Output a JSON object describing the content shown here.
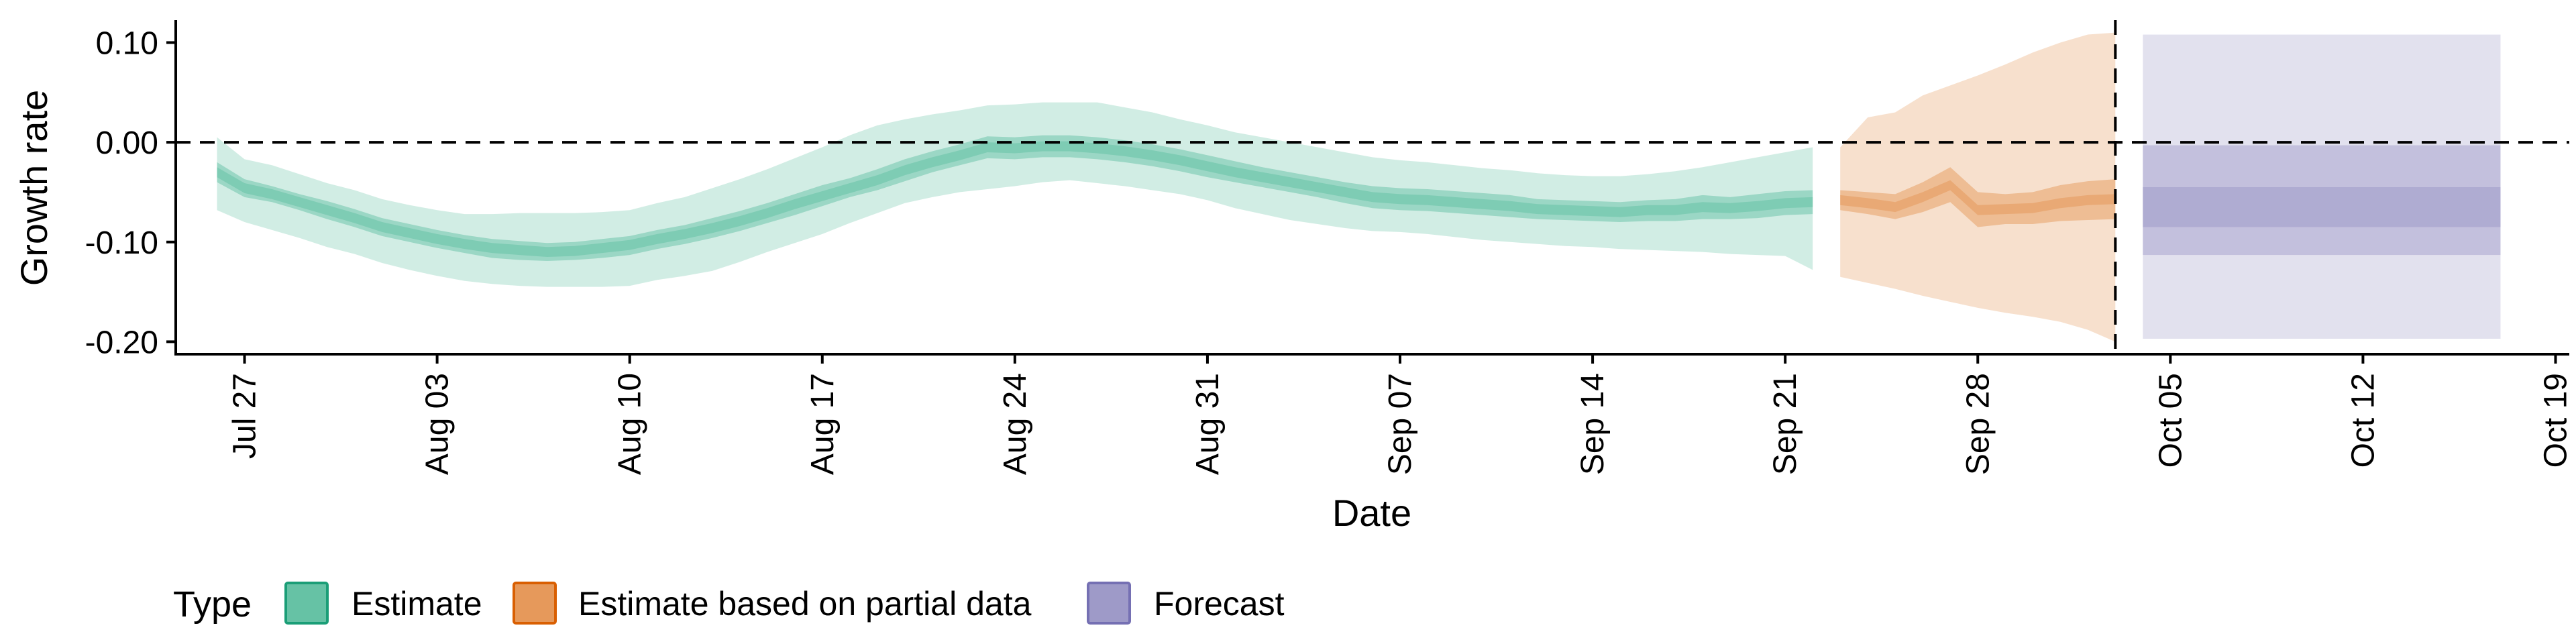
{
  "chart_data": {
    "type": "area",
    "title": "",
    "xlabel": "Date",
    "ylabel": "Growth rate",
    "x_start": "Jul 25",
    "x_range_days": [
      -0.5,
      86.5
    ],
    "ylim": [
      -0.2125,
      0.1225
    ],
    "y_ticks": [
      0.1,
      0.0,
      -0.1,
      -0.2
    ],
    "y_tick_labels": [
      "0.10",
      "0.00",
      "-0.10",
      "-0.20"
    ],
    "x_tick_days": [
      2,
      9,
      16,
      23,
      30,
      37,
      44,
      51,
      58,
      65,
      72,
      79,
      86
    ],
    "x_tick_labels": [
      "Jul 27",
      "Aug 03",
      "Aug 10",
      "Aug 17",
      "Aug 24",
      "Aug 31",
      "Sep 07",
      "Sep 14",
      "Sep 21",
      "Sep 28",
      "Oct 05",
      "Oct 12",
      "Oct 19"
    ],
    "reference_lines": {
      "horizontal_zero": 0.0,
      "vertical_day": 70
    },
    "legend": {
      "title": "Type",
      "position": "bottom-left",
      "entries": [
        {
          "label": "Estimate",
          "fill": "#66c2a5",
          "border": "#1b9e77"
        },
        {
          "label": "Estimate based on partial data",
          "fill": "#e6995b",
          "border": "#d95f02"
        },
        {
          "label": "Forecast",
          "fill": "#9e9ac8",
          "border": "#7570b3"
        }
      ]
    },
    "series": [
      {
        "name": "Estimate",
        "color": "#1b9e77",
        "x_days": [
          1,
          2,
          3,
          4,
          5,
          6,
          7,
          8,
          9,
          10,
          11,
          12,
          13,
          14,
          15,
          16,
          17,
          18,
          19,
          20,
          21,
          22,
          23,
          24,
          25,
          26,
          27,
          28,
          29,
          30,
          31,
          32,
          33,
          34,
          35,
          36,
          37,
          38,
          39,
          40,
          41,
          42,
          43,
          44,
          45,
          46,
          47,
          48,
          49,
          50,
          51,
          52,
          53,
          54,
          55,
          56,
          57,
          58,
          59
        ],
        "median": [
          -0.03,
          -0.046,
          -0.052,
          -0.06,
          -0.068,
          -0.076,
          -0.085,
          -0.091,
          -0.097,
          -0.102,
          -0.106,
          -0.108,
          -0.11,
          -0.109,
          -0.106,
          -0.103,
          -0.097,
          -0.092,
          -0.086,
          -0.079,
          -0.071,
          -0.062,
          -0.054,
          -0.046,
          -0.038,
          -0.028,
          -0.02,
          -0.013,
          -0.005,
          -0.006,
          -0.004,
          -0.004,
          -0.006,
          -0.009,
          -0.013,
          -0.018,
          -0.024,
          -0.03,
          -0.035,
          -0.04,
          -0.045,
          -0.05,
          -0.055,
          -0.057,
          -0.058,
          -0.06,
          -0.062,
          -0.064,
          -0.067,
          -0.068,
          -0.069,
          -0.07,
          -0.068,
          -0.068,
          -0.065,
          -0.066,
          -0.064,
          -0.061,
          -0.06
        ],
        "q25": [
          -0.04,
          -0.055,
          -0.06,
          -0.068,
          -0.077,
          -0.085,
          -0.094,
          -0.1,
          -0.106,
          -0.111,
          -0.116,
          -0.118,
          -0.119,
          -0.118,
          -0.116,
          -0.113,
          -0.107,
          -0.102,
          -0.096,
          -0.089,
          -0.081,
          -0.073,
          -0.064,
          -0.055,
          -0.048,
          -0.039,
          -0.03,
          -0.023,
          -0.016,
          -0.017,
          -0.015,
          -0.015,
          -0.017,
          -0.02,
          -0.024,
          -0.029,
          -0.035,
          -0.04,
          -0.045,
          -0.05,
          -0.055,
          -0.061,
          -0.066,
          -0.068,
          -0.069,
          -0.071,
          -0.073,
          -0.075,
          -0.077,
          -0.078,
          -0.079,
          -0.08,
          -0.079,
          -0.079,
          -0.077,
          -0.077,
          -0.076,
          -0.073,
          -0.072
        ],
        "q75": [
          -0.02,
          -0.037,
          -0.044,
          -0.052,
          -0.059,
          -0.067,
          -0.076,
          -0.082,
          -0.088,
          -0.093,
          -0.097,
          -0.099,
          -0.101,
          -0.1,
          -0.097,
          -0.094,
          -0.088,
          -0.083,
          -0.076,
          -0.069,
          -0.061,
          -0.052,
          -0.043,
          -0.036,
          -0.027,
          -0.017,
          -0.009,
          -0.002,
          0.006,
          0.005,
          0.007,
          0.007,
          0.005,
          0.002,
          -0.002,
          -0.007,
          -0.013,
          -0.019,
          -0.025,
          -0.03,
          -0.035,
          -0.04,
          -0.044,
          -0.046,
          -0.047,
          -0.049,
          -0.051,
          -0.053,
          -0.057,
          -0.058,
          -0.059,
          -0.06,
          -0.058,
          -0.057,
          -0.053,
          -0.055,
          -0.052,
          -0.049,
          -0.048
        ],
        "q05": [
          -0.068,
          -0.08,
          -0.088,
          -0.096,
          -0.105,
          -0.112,
          -0.121,
          -0.128,
          -0.134,
          -0.139,
          -0.142,
          -0.144,
          -0.145,
          -0.145,
          -0.145,
          -0.144,
          -0.138,
          -0.134,
          -0.129,
          -0.12,
          -0.11,
          -0.101,
          -0.092,
          -0.081,
          -0.071,
          -0.061,
          -0.055,
          -0.05,
          -0.047,
          -0.044,
          -0.04,
          -0.038,
          -0.041,
          -0.044,
          -0.048,
          -0.052,
          -0.058,
          -0.066,
          -0.072,
          -0.078,
          -0.082,
          -0.086,
          -0.089,
          -0.09,
          -0.092,
          -0.095,
          -0.098,
          -0.1,
          -0.102,
          -0.104,
          -0.105,
          -0.107,
          -0.108,
          -0.109,
          -0.11,
          -0.112,
          -0.113,
          -0.114,
          -0.128
        ],
        "q95": [
          0.005,
          -0.017,
          -0.023,
          -0.032,
          -0.041,
          -0.048,
          -0.057,
          -0.063,
          -0.068,
          -0.072,
          -0.072,
          -0.071,
          -0.071,
          -0.071,
          -0.07,
          -0.068,
          -0.061,
          -0.055,
          -0.046,
          -0.037,
          -0.027,
          -0.016,
          -0.005,
          0.007,
          0.017,
          0.023,
          0.028,
          0.032,
          0.037,
          0.038,
          0.04,
          0.04,
          0.04,
          0.035,
          0.03,
          0.023,
          0.017,
          0.01,
          0.005,
          0.0,
          -0.005,
          -0.01,
          -0.015,
          -0.018,
          -0.02,
          -0.023,
          -0.026,
          -0.028,
          -0.031,
          -0.033,
          -0.034,
          -0.034,
          -0.032,
          -0.029,
          -0.025,
          -0.02,
          -0.015,
          -0.01,
          -0.005
        ]
      },
      {
        "name": "Estimate based on partial data",
        "color": "#d95f02",
        "x_days": [
          60,
          61,
          62,
          63,
          64,
          65,
          66,
          67,
          68,
          69,
          70
        ],
        "median": [
          -0.058,
          -0.061,
          -0.065,
          -0.055,
          -0.043,
          -0.068,
          -0.067,
          -0.066,
          -0.061,
          -0.058,
          -0.057
        ],
        "q25": [
          -0.068,
          -0.072,
          -0.077,
          -0.07,
          -0.06,
          -0.085,
          -0.082,
          -0.082,
          -0.079,
          -0.078,
          -0.077
        ],
        "q75": [
          -0.048,
          -0.05,
          -0.052,
          -0.04,
          -0.025,
          -0.05,
          -0.052,
          -0.05,
          -0.043,
          -0.039,
          -0.037
        ],
        "q05": [
          -0.135,
          -0.141,
          -0.147,
          -0.154,
          -0.16,
          -0.166,
          -0.171,
          -0.175,
          -0.18,
          -0.188,
          -0.2
        ],
        "q95": [
          -0.005,
          0.025,
          0.03,
          0.047,
          0.057,
          0.067,
          0.078,
          0.09,
          0.1,
          0.108,
          0.11
        ]
      },
      {
        "name": "Forecast",
        "color": "#7570b3",
        "x_start_day": 71,
        "x_end_day": 84,
        "median": -0.065,
        "q25": -0.085,
        "q75": -0.045,
        "q05": -0.113,
        "q95": -0.003,
        "q025": -0.197,
        "q975": 0.108
      }
    ]
  }
}
